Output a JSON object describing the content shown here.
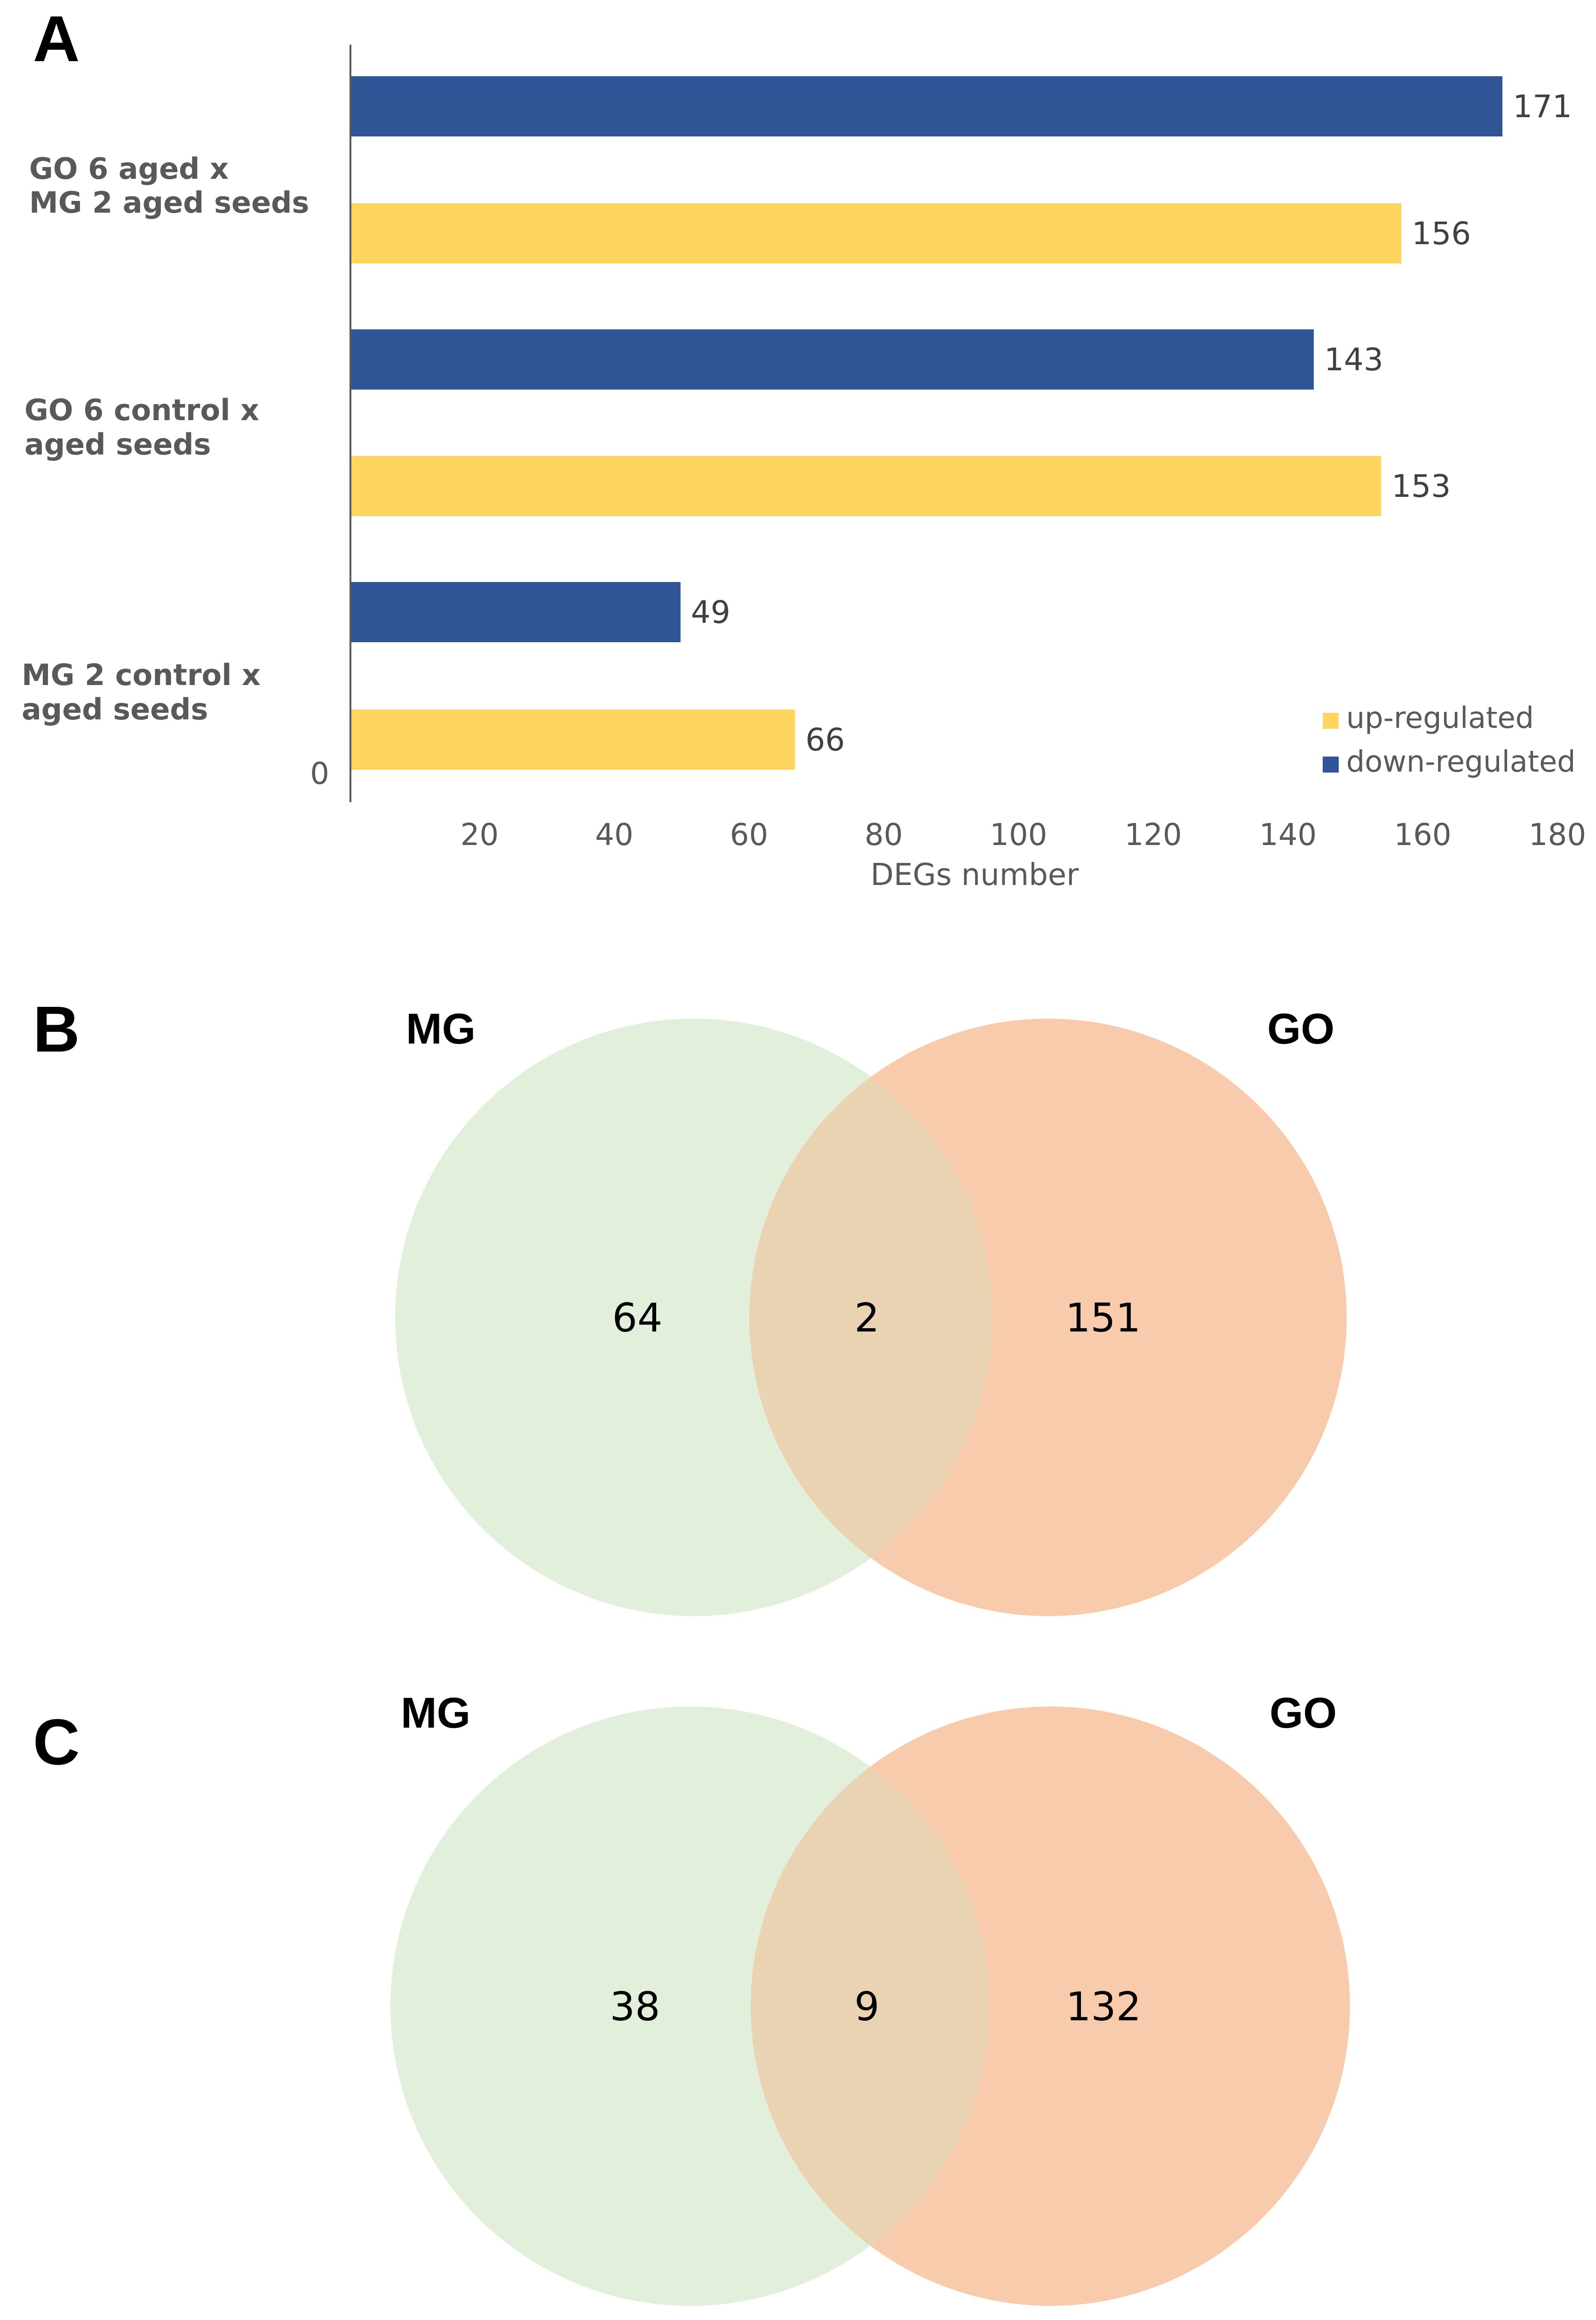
{
  "colors": {
    "up": "#fdd55f",
    "down": "#2f5597",
    "mg": "#e2efda",
    "go": "#f8cbad",
    "overlap": "#ead3b3"
  },
  "chart_data": [
    {
      "type": "bar",
      "orientation": "horizontal",
      "panel": "A",
      "xlabel": "DEGs number",
      "xlim": [
        0,
        180
      ],
      "xticks": [
        "0",
        "20",
        "40",
        "60",
        "80",
        "100",
        "120",
        "140",
        "160",
        "180"
      ],
      "categories": [
        "GO 6 aged x MG 2 aged seeds",
        "GO 6 control x aged seeds",
        "MG 2 control x aged seeds"
      ],
      "series": [
        {
          "name": "down-regulated",
          "values": [
            171,
            143,
            49
          ]
        },
        {
          "name": "up-regulated",
          "values": [
            156,
            153,
            66
          ]
        }
      ],
      "legend": {
        "position": "bottom-right",
        "entries": [
          "up-regulated",
          "down-regulated"
        ]
      }
    }
  ],
  "venns": [
    {
      "panel": "B",
      "left": "MG",
      "right": "GO",
      "left_only": "64",
      "both": "2",
      "right_only": "151"
    },
    {
      "panel": "C",
      "left": "MG",
      "right": "GO",
      "left_only": "38",
      "both": "9",
      "right_only": "132"
    }
  ]
}
